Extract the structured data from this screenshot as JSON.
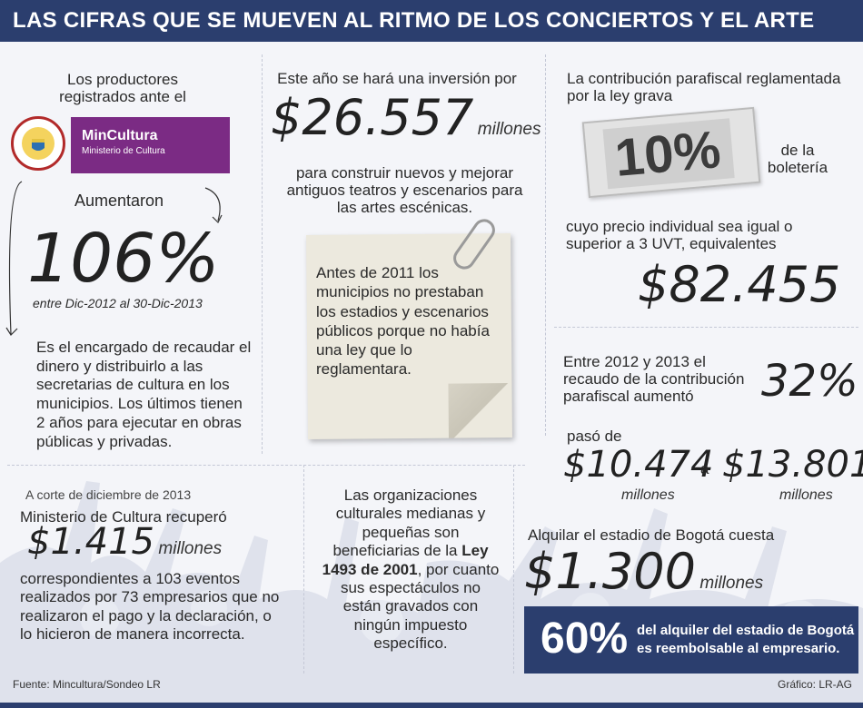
{
  "header": {
    "title": "LAS CIFRAS QUE SE MUEVEN AL RITMO DE LOS CONCIERTOS Y EL ARTE"
  },
  "colors": {
    "navy": "#2b3e6e",
    "purple": "#7b2b84"
  },
  "left": {
    "intro": "Los productores registrados ante el",
    "logo": {
      "brand": "MinCultura",
      "subtitle": "Ministerio de Cultura",
      "seal_text_top": "REPÚBLICA",
      "seal_text_bottom": "DE COLOMBIA"
    },
    "increase_label": "Aumentaron",
    "increase_value": "106%",
    "increase_period": "entre Dic-2012 al 30-Dic-2013",
    "description": "Es el encargado de recaudar el dinero y distribuirlo a las secretarias de cultura en los municipios. Los últimos tienen 2 años para ejecutar en obras públicas y privadas."
  },
  "middle": {
    "investment_intro": "Este año se hará una inversión por",
    "investment_value": "$26.557",
    "investment_unit": "millones",
    "investment_desc": "para construir nuevos y mejorar antiguos teatros y escenarios para las artes escénicas.",
    "note_text": "Antes de 2011 los municipios no prestaban los estadios y escenarios públicos porque no había una ley que lo reglamentara."
  },
  "right": {
    "contribution_intro": "La contribución parafiscal reglamentada por la ley grava",
    "ticket_value": "10%",
    "ticket_suffix": "de la boletería",
    "price_condition": "cuyo precio individual sea igual o superior a 3 UVT, equivalentes",
    "price_value": "$82.455",
    "growth_text": "Entre 2012 y 2013 el recaudo de la contribución parafiscal aumentó",
    "growth_value": "32%",
    "went_from": "pasó de",
    "from_value": "$10.474",
    "from_unit": "millones",
    "connector": "a",
    "to_value": "$13.801",
    "to_unit": "millones",
    "rent_intro": "Alquilar el estadio de Bogotá cuesta",
    "rent_value": "$1.300",
    "rent_unit": "millones",
    "refund_pct": "60%",
    "refund_text_1": "del alquiler del estadio de Bogotá",
    "refund_text_2": "es reembolsable al empresario."
  },
  "bottom_left": {
    "cutoff": "A corte de diciembre de 2013",
    "recovered_intro": "Ministerio de Cultura recuperó",
    "recovered_value": "$1.415",
    "recovered_unit": "millones",
    "recovered_desc": "correspondientes a 103 eventos realizados por 73 empresarios que no realizaron el pago y la declaración, o lo hicieron de manera incorrecta."
  },
  "bottom_middle": {
    "text_before": "Las organizaciones culturales medianas y pequeñas son beneficiarias de la",
    "law": "Ley 1493 de 2001",
    "text_after": ", por cuanto sus espectáculos no están gravados con ningún impuesto específico."
  },
  "footer": {
    "source": "Fuente: Mincultura/Sondeo LR",
    "credit": "Gráfico: LR-AG"
  }
}
